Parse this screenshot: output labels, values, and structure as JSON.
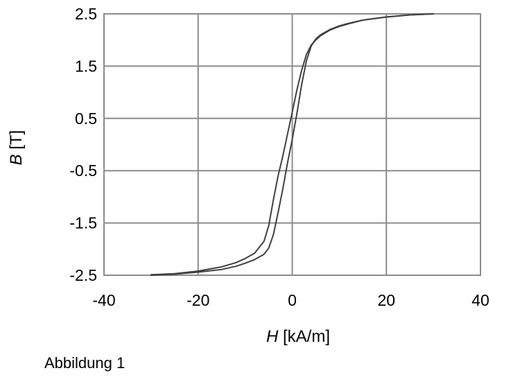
{
  "chart_data": {
    "type": "line",
    "title": "",
    "xlabel_var": "H",
    "xlabel_unit": "[kA/m]",
    "ylabel_var": "B",
    "ylabel_unit": "[T]",
    "xlim": [
      -40,
      40
    ],
    "ylim": [
      -2.5,
      2.5
    ],
    "xticks": [
      -40,
      -20,
      0,
      20,
      40
    ],
    "xtick_labels": [
      "-40",
      "-20",
      "0",
      "20",
      "40"
    ],
    "yticks": [
      2.5,
      1.5,
      0.5,
      -0.5,
      -1.5,
      -2.5
    ],
    "ytick_labels": [
      "2.5",
      "1.5",
      "0.5",
      "-0.5",
      "-1.5",
      "-2.5"
    ],
    "grid": true,
    "series": [
      {
        "x": [
          -30,
          -25,
          -20,
          -15,
          -12,
          -10,
          -8,
          -6,
          -5,
          -4,
          -3,
          -2,
          -1,
          0,
          1,
          2,
          3,
          4,
          5,
          6,
          8,
          10,
          12,
          15,
          20,
          25,
          30
        ],
        "y": [
          -2.49,
          -2.47,
          -2.42,
          -2.34,
          -2.26,
          -2.18,
          -2.08,
          -1.85,
          -1.55,
          -1.05,
          -0.6,
          -0.22,
          0.2,
          0.62,
          1.05,
          1.42,
          1.72,
          1.9,
          2.0,
          2.08,
          2.19,
          2.26,
          2.31,
          2.38,
          2.44,
          2.48,
          2.5
        ]
      },
      {
        "x": [
          30,
          25,
          20,
          15,
          12,
          10,
          8,
          6,
          5,
          4,
          3,
          2,
          1,
          0,
          -1,
          -2,
          -3,
          -4,
          -5,
          -6,
          -8,
          -10,
          -12,
          -15,
          -20,
          -25,
          -30
        ],
        "y": [
          2.5,
          2.48,
          2.44,
          2.38,
          2.32,
          2.27,
          2.2,
          2.1,
          2.02,
          1.88,
          1.6,
          1.15,
          0.6,
          0.1,
          -0.35,
          -0.85,
          -1.3,
          -1.72,
          -1.98,
          -2.1,
          -2.2,
          -2.27,
          -2.33,
          -2.39,
          -2.44,
          -2.48,
          -2.5
        ]
      }
    ],
    "line_color": "#404040",
    "grid_color": "#8c8c8c"
  },
  "caption": "Abbildung 1"
}
